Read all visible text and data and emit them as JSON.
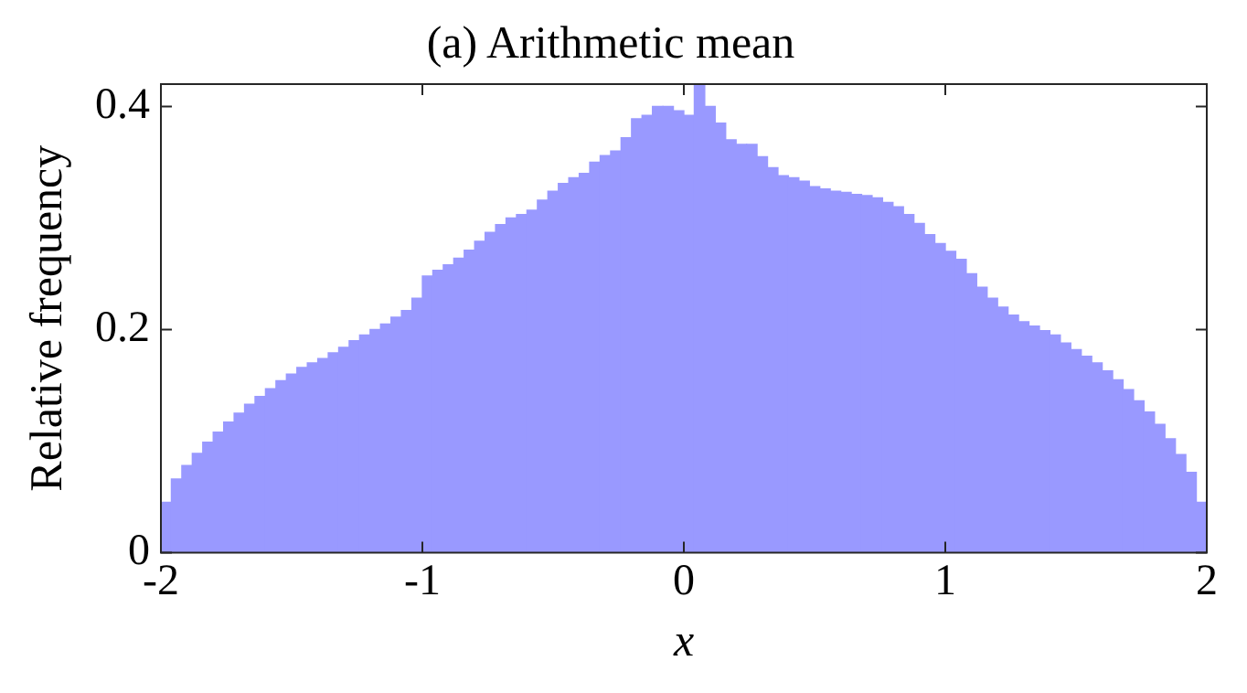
{
  "chart_data": {
    "type": "histogram",
    "title": "(a) Arithmetic mean",
    "xlabel": "x",
    "ylabel": "Relative frequency",
    "color": "#9999ff",
    "bins": [
      -2,
      -1.96,
      -1.92,
      -1.88,
      -1.84,
      -1.8,
      -1.76,
      -1.72,
      -1.68,
      -1.64,
      -1.6,
      -1.56,
      -1.52,
      -1.48,
      -1.44,
      -1.4,
      -1.36,
      -1.32,
      -1.28,
      -1.24,
      -1.2,
      -1.16,
      -1.12,
      -1.08,
      -1.04,
      -1,
      -0.96,
      -0.92,
      -0.88,
      -0.84,
      -0.8,
      -0.76,
      -0.72,
      -0.68,
      -0.64,
      -0.6,
      -0.56,
      -0.52,
      -0.48,
      -0.44,
      -0.4,
      -0.36,
      -0.32,
      -0.28,
      -0.24,
      -0.2,
      -0.16,
      -0.12,
      -0.08,
      -0.04,
      0,
      0.04,
      0.08,
      0.12,
      0.16,
      0.2,
      0.24,
      0.28,
      0.32,
      0.36,
      0.4,
      0.44,
      0.48,
      0.52,
      0.56,
      0.6,
      0.64,
      0.68,
      0.72,
      0.76,
      0.8,
      0.84,
      0.88,
      0.92,
      0.96,
      1,
      1.04,
      1.08,
      1.12,
      1.16,
      1.2,
      1.24,
      1.28,
      1.32,
      1.36,
      1.4,
      1.44,
      1.48,
      1.52,
      1.56,
      1.6,
      1.64,
      1.68,
      1.72,
      1.76,
      1.8,
      1.84,
      1.88,
      1.92,
      1.96,
      2
    ],
    "values": [
      0.045,
      0.066,
      0.078,
      0.089,
      0.099,
      0.108,
      0.117,
      0.125,
      0.133,
      0.14,
      0.147,
      0.154,
      0.16,
      0.166,
      0.17,
      0.174,
      0.179,
      0.184,
      0.19,
      0.195,
      0.2,
      0.205,
      0.211,
      0.217,
      0.228,
      0.248,
      0.253,
      0.258,
      0.264,
      0.271,
      0.279,
      0.287,
      0.294,
      0.3,
      0.303,
      0.307,
      0.316,
      0.324,
      0.331,
      0.336,
      0.34,
      0.35,
      0.356,
      0.36,
      0.372,
      0.389,
      0.392,
      0.4,
      0.4,
      0.396,
      0.392,
      0.42,
      0.4,
      0.385,
      0.37,
      0.366,
      0.366,
      0.355,
      0.345,
      0.338,
      0.336,
      0.333,
      0.328,
      0.326,
      0.324,
      0.323,
      0.321,
      0.32,
      0.318,
      0.314,
      0.31,
      0.303,
      0.295,
      0.285,
      0.277,
      0.27,
      0.263,
      0.25,
      0.238,
      0.228,
      0.22,
      0.213,
      0.207,
      0.203,
      0.199,
      0.195,
      0.188,
      0.182,
      0.176,
      0.17,
      0.163,
      0.155,
      0.146,
      0.136,
      0.126,
      0.115,
      0.102,
      0.088,
      0.072,
      0.045
    ],
    "xlim": [
      -2,
      2
    ],
    "ylim": [
      0,
      0.42
    ],
    "xticks": [
      -2,
      -1,
      0,
      1,
      2
    ],
    "yticks": [
      0,
      0.2,
      0.4
    ],
    "grid": false,
    "legend": false
  }
}
